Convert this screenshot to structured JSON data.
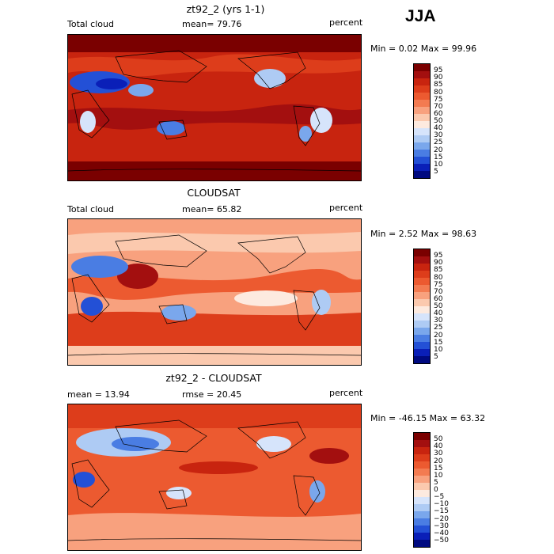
{
  "season": "JJA",
  "panels": [
    {
      "title": "zt92_2 (yrs 1-1)",
      "left_label": "Total cloud",
      "mid_label": "mean=  79.76",
      "unit": "percent",
      "minmax": "Min =    0.02 Max =   99.96",
      "colorbar_labels": [
        "95",
        "90",
        "85",
        "80",
        "75",
        "70",
        "60",
        "50",
        "40",
        "30",
        "25",
        "20",
        "15",
        "10",
        "5"
      ],
      "colors": [
        "#7a0000",
        "#a30f0f",
        "#c8240f",
        "#dd3d1b",
        "#ec5a30",
        "#f37b51",
        "#f8a17e",
        "#fbc9ae",
        "#fdeadf",
        "#d6e4fb",
        "#aecbf4",
        "#7aa7ec",
        "#4a7de3",
        "#2350d6",
        "#0a1fb8",
        "#000a80"
      ]
    },
    {
      "title": "CLOUDSAT",
      "left_label": "Total cloud",
      "mid_label": "mean=  65.82",
      "unit": "percent",
      "minmax": "Min =    2.52 Max =   98.63",
      "colorbar_labels": [
        "95",
        "90",
        "85",
        "80",
        "75",
        "70",
        "60",
        "50",
        "40",
        "30",
        "25",
        "20",
        "15",
        "10",
        "5"
      ],
      "colors": [
        "#7a0000",
        "#a30f0f",
        "#c8240f",
        "#dd3d1b",
        "#ec5a30",
        "#f37b51",
        "#f8a17e",
        "#fbc9ae",
        "#fdeadf",
        "#d6e4fb",
        "#aecbf4",
        "#7aa7ec",
        "#4a7de3",
        "#2350d6",
        "#0a1fb8",
        "#000a80"
      ]
    },
    {
      "title": "zt92_2 - CLOUDSAT",
      "left_label": "mean =   13.94",
      "mid_label": "rmse =   20.45",
      "unit": "percent",
      "minmax": "Min = -46.15 Max =  63.32",
      "colorbar_labels": [
        "50",
        "40",
        "30",
        "20",
        "15",
        "10",
        "5",
        "0",
        "−5",
        "−10",
        "−15",
        "−20",
        "−30",
        "−40",
        "−50"
      ],
      "colors": [
        "#7a0000",
        "#a30f0f",
        "#c8240f",
        "#dd3d1b",
        "#ec5a30",
        "#f37b51",
        "#f8a17e",
        "#fbc9ae",
        "#fdeadf",
        "#d6e4fb",
        "#aecbf4",
        "#7aa7ec",
        "#4a7de3",
        "#2350d6",
        "#0a1fb8",
        "#000a80"
      ]
    }
  ]
}
